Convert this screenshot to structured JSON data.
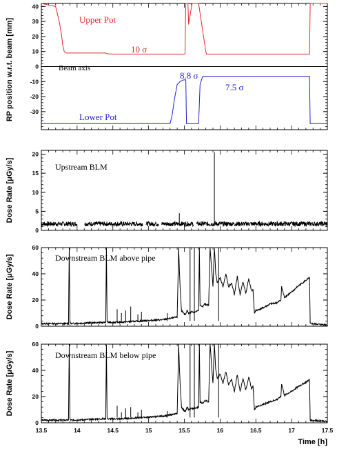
{
  "chart_data": [
    {
      "type": "line",
      "panel": "rp",
      "ylabel": "RP position w.r.t. beam [mm]",
      "ylim": [
        -42,
        42
      ],
      "xlim": [
        13.5,
        17.5
      ],
      "yticks": [
        40,
        30,
        20,
        10,
        0,
        -10,
        -20,
        -30
      ],
      "yticks_minor": true,
      "series": [
        {
          "name": "Upper Pot",
          "color": "#e8262a",
          "x": [
            13.5,
            13.7,
            13.72,
            13.75,
            13.78,
            13.8,
            13.82,
            13.85,
            14.4,
            14.42,
            14.5,
            15.3,
            15.5,
            15.51,
            15.52,
            15.55,
            15.56,
            15.6,
            15.61,
            15.7,
            15.75,
            15.8,
            15.81,
            17.25,
            17.26,
            17.5
          ],
          "y": [
            42,
            40,
            36,
            30,
            22,
            14,
            10,
            9,
            9,
            8.5,
            8.3,
            8.3,
            8.3,
            8.6,
            42,
            42,
            28,
            40,
            42,
            42,
            26,
            10,
            8.3,
            8.3,
            42,
            42
          ]
        },
        {
          "name": "Lower Pot",
          "color": "#1f1fd4",
          "x": [
            13.5,
            15.3,
            15.33,
            15.36,
            15.4,
            15.44,
            15.48,
            15.5,
            15.52,
            15.53,
            15.7,
            15.72,
            15.75,
            15.76,
            15.78,
            15.8,
            15.82,
            16.5,
            16.55,
            17.25,
            17.26,
            17.5
          ],
          "y": [
            -38,
            -38,
            -32,
            -22,
            -12,
            -10,
            -9,
            -8.8,
            -8.8,
            -38,
            -38,
            -12,
            -7.5,
            -6.5,
            -6.6,
            -6.5,
            -6.5,
            -6.5,
            -6.5,
            -6.5,
            -38,
            -38
          ]
        }
      ],
      "annotations": {
        "upper_pot": "Upper Pot",
        "lower_pot": "Lower Pot",
        "beam_axis": "Beam axis",
        "sigma_10": "10 σ",
        "sigma_88": "8.8 σ",
        "sigma_75": "7.5 σ"
      }
    },
    {
      "type": "line",
      "panel": "upstream",
      "ylabel": "Dose Rate [μGy/s]",
      "ylim": [
        0,
        21
      ],
      "yticks": [
        20,
        15,
        10,
        5,
        0
      ],
      "annotation": "Upstream BLM",
      "series": [
        {
          "name": "Upstream BLM",
          "color": "#000000",
          "baseline": 1.7,
          "spikes": [
            [
              15.43,
              4.5
            ],
            [
              15.92,
              20.5
            ]
          ],
          "gaps": [
            [
              14.0,
              14.1
            ],
            [
              14.92,
              14.96
            ],
            [
              15.14,
              15.18
            ],
            [
              15.63,
              15.67
            ]
          ]
        }
      ]
    },
    {
      "type": "line",
      "panel": "downstream_above",
      "ylabel": "Dose Rate [μGy/s]",
      "ylim": [
        0,
        60
      ],
      "yticks": [
        60,
        40,
        20,
        0
      ],
      "annotation": "Downstream BLM above pipe",
      "series": [
        {
          "name": "Downstream BLM above pipe",
          "color": "#000000",
          "x": [
            13.5,
            13.88,
            13.89,
            13.9,
            13.91,
            14.4,
            14.41,
            14.42,
            14.43,
            14.6,
            14.9,
            15.2,
            15.4,
            15.42,
            15.44,
            15.46,
            15.5,
            15.52,
            15.54,
            15.56,
            15.6,
            15.65,
            15.7,
            15.71,
            15.72,
            15.76,
            15.78,
            15.84,
            15.86,
            15.9,
            15.92,
            15.94,
            15.96,
            16.0,
            16.04,
            16.08,
            16.12,
            16.16,
            16.2,
            16.24,
            16.28,
            16.32,
            16.36,
            16.4,
            16.44,
            16.46,
            16.48,
            16.5,
            16.6,
            16.7,
            16.8,
            16.85,
            16.86,
            16.9,
            17.0,
            17.1,
            17.2,
            17.25,
            17.26,
            17.5
          ],
          "y": [
            2,
            2,
            60,
            3,
            2,
            3,
            60,
            4,
            3,
            3,
            4,
            5,
            7,
            60,
            30,
            12,
            9,
            9,
            12,
            10,
            11,
            11,
            12,
            60,
            16,
            15,
            17,
            16,
            60,
            30,
            60,
            40,
            33,
            37,
            30,
            40,
            30,
            33,
            24,
            38,
            24,
            34,
            25,
            36,
            27,
            28,
            10,
            12,
            14,
            17,
            18,
            20,
            30,
            22,
            26,
            31,
            35,
            37,
            2,
            1
          ]
        }
      ],
      "spikes": [
        [
          14.56,
          13
        ],
        [
          14.62,
          10
        ],
        [
          14.68,
          12
        ],
        [
          14.75,
          15
        ],
        [
          14.85,
          9
        ],
        [
          14.9,
          11
        ],
        [
          15.26,
          10
        ],
        [
          15.58,
          60
        ],
        [
          15.64,
          60
        ],
        [
          15.98,
          60
        ]
      ]
    },
    {
      "type": "line",
      "panel": "downstream_below",
      "ylabel": "Dose Rate [μGy/s]",
      "ylim": [
        0,
        60
      ],
      "yticks": [
        60,
        40,
        20,
        0
      ],
      "xlabel": "Time [h]",
      "xticks": [
        13.5,
        14,
        14.5,
        15,
        15.5,
        16,
        16.5,
        17,
        17.5
      ],
      "annotation": "Downstream BLM below pipe",
      "series": [
        {
          "name": "Downstream BLM below pipe",
          "color": "#000000",
          "x": [
            13.5,
            13.88,
            13.89,
            13.9,
            13.91,
            14.4,
            14.41,
            14.42,
            14.43,
            14.6,
            14.9,
            15.2,
            15.4,
            15.42,
            15.44,
            15.46,
            15.5,
            15.52,
            15.54,
            15.56,
            15.6,
            15.65,
            15.7,
            15.71,
            15.72,
            15.76,
            15.78,
            15.84,
            15.86,
            15.9,
            15.92,
            15.94,
            15.96,
            16.0,
            16.04,
            16.08,
            16.12,
            16.16,
            16.2,
            16.24,
            16.28,
            16.32,
            16.36,
            16.4,
            16.44,
            16.46,
            16.48,
            16.5,
            16.6,
            16.7,
            16.8,
            16.85,
            16.86,
            16.9,
            17.0,
            17.1,
            17.2,
            17.25,
            17.26,
            17.5
          ],
          "y": [
            2,
            2,
            60,
            3,
            2,
            3,
            60,
            4,
            3,
            3,
            4,
            5,
            7,
            60,
            30,
            12,
            9,
            9,
            12,
            10,
            11,
            11,
            12,
            60,
            16,
            15,
            17,
            16,
            60,
            30,
            60,
            40,
            34,
            37,
            30,
            39,
            29,
            33,
            24,
            37,
            24,
            34,
            25,
            35,
            26,
            28,
            10,
            12,
            14,
            16,
            18,
            20,
            30,
            21,
            24,
            28,
            31,
            33,
            2,
            1
          ]
        }
      ],
      "spikes": [
        [
          14.56,
          13
        ],
        [
          14.62,
          8
        ],
        [
          14.68,
          11
        ],
        [
          14.75,
          12
        ],
        [
          14.85,
          8
        ],
        [
          14.9,
          10
        ],
        [
          15.26,
          9
        ],
        [
          15.58,
          60
        ],
        [
          15.64,
          60
        ],
        [
          15.98,
          60
        ]
      ]
    }
  ]
}
